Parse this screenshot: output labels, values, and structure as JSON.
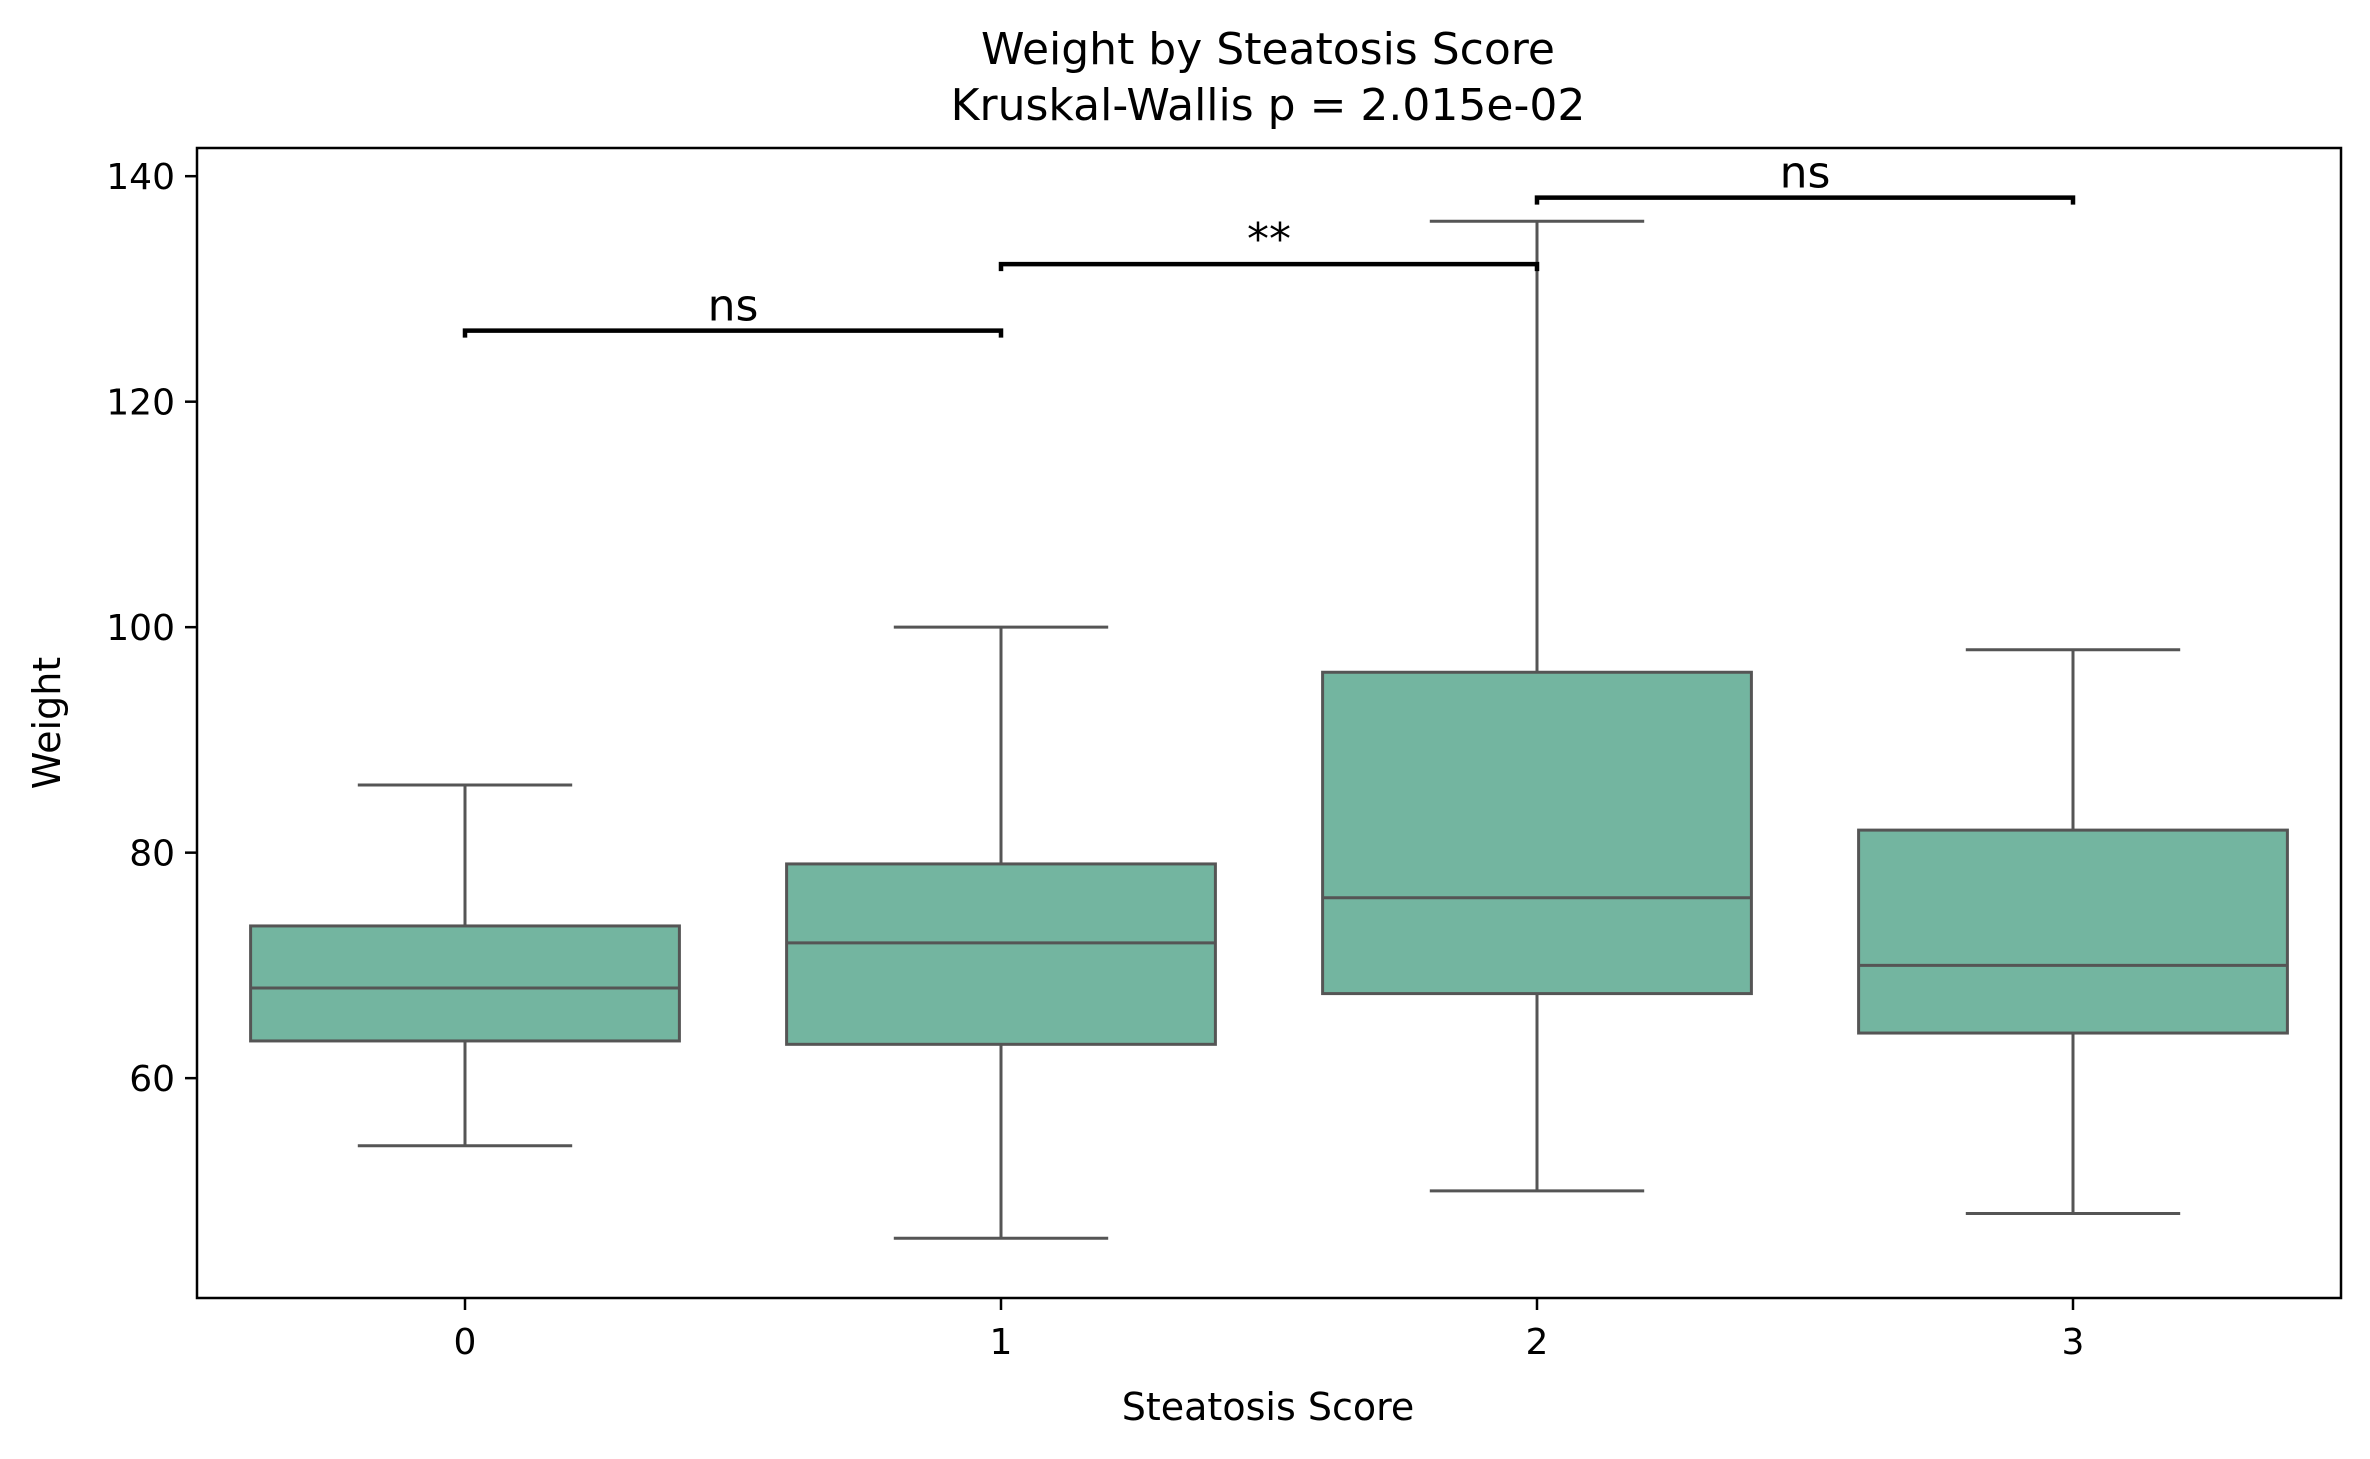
{
  "chart_data": {
    "type": "box",
    "title": "Weight by Steatosis Score",
    "subtitle": "Kruskal-Wallis p = 2.015e-02",
    "xlabel": "Steatosis Score",
    "ylabel": "Weight",
    "categories": [
      "0",
      "1",
      "2",
      "3"
    ],
    "ylim": [
      40.5,
      142.5
    ],
    "yticks": [
      60,
      80,
      100,
      120,
      140
    ],
    "grid": false,
    "box_color": "#73b5a0",
    "line_color": "#555555",
    "boxes": [
      {
        "category": "0",
        "whisker_low": 54,
        "q1": 63.3,
        "median": 68,
        "q3": 73.5,
        "whisker_high": 86
      },
      {
        "category": "1",
        "whisker_low": 45.8,
        "q1": 63,
        "median": 72,
        "q3": 79,
        "whisker_high": 100
      },
      {
        "category": "2",
        "whisker_low": 50,
        "q1": 67.5,
        "median": 76,
        "q3": 96,
        "whisker_high": 136
      },
      {
        "category": "3",
        "whisker_low": 48,
        "q1": 64,
        "median": 70,
        "q3": 82,
        "whisker_high": 98
      }
    ],
    "annotations": [
      {
        "from": "0",
        "to": "1",
        "y": 126.3,
        "label": "ns"
      },
      {
        "from": "1",
        "to": "2",
        "y": 132.2,
        "label": "**"
      },
      {
        "from": "2",
        "to": "3",
        "y": 138.1,
        "label": "ns"
      }
    ]
  }
}
